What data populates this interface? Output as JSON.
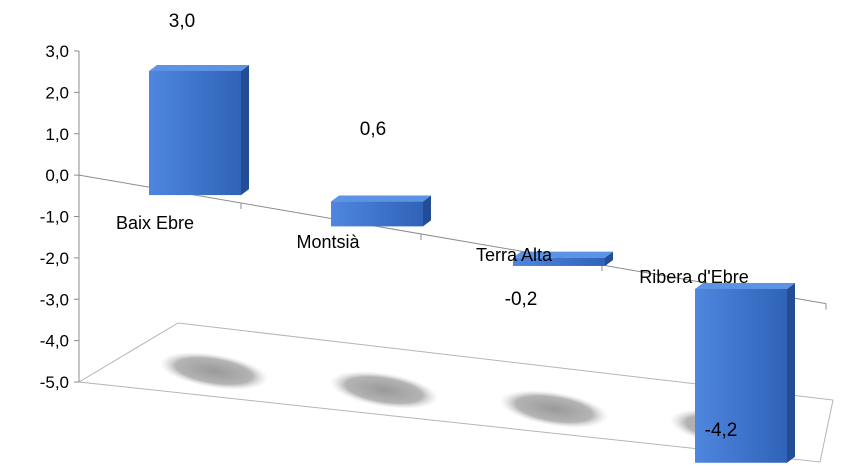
{
  "chart_data": {
    "type": "bar",
    "style": "3d-perspective",
    "categories": [
      "Baix Ebre",
      "Montsià",
      "Terra Alta",
      "Ribera d'Ebre"
    ],
    "values": [
      3.0,
      0.6,
      -0.2,
      -4.2
    ],
    "value_labels": [
      "3,0",
      "0,6",
      "-0,2",
      "-4,2"
    ],
    "y_ticks": [
      "3,0",
      "2,0",
      "1,0",
      "0,0",
      "-1,0",
      "-2,0",
      "-3,0",
      "-4,0",
      "-5,0"
    ],
    "ylim": [
      -5,
      3
    ],
    "title": "",
    "xlabel": "",
    "ylabel": "",
    "grid": false,
    "legend": "none",
    "colors": {
      "bar_front": "#3a70c8",
      "bar_front_light": "#4f86de",
      "bar_top": "#5d93e3",
      "bar_side": "#234e95",
      "axis": "#8c8c8c",
      "shadow": "#a8a8a8"
    }
  }
}
